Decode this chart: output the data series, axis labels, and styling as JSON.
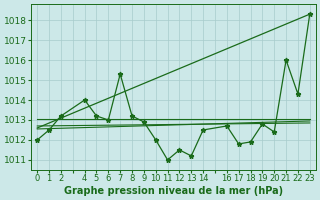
{
  "series_main": {
    "x": [
      0,
      1,
      2,
      4,
      5,
      6,
      7,
      8,
      9,
      10,
      11,
      12,
      13,
      14,
      16,
      17,
      18,
      19,
      20,
      21,
      22,
      23
    ],
    "y": [
      1012.0,
      1012.5,
      1013.2,
      1014.0,
      1013.2,
      1013.0,
      1015.3,
      1013.2,
      1012.9,
      1012.0,
      1011.0,
      1011.5,
      1011.2,
      1012.5,
      1012.7,
      1011.8,
      1011.9,
      1012.8,
      1012.4,
      1016.0,
      1014.3,
      1018.3
    ]
  },
  "series_diag": {
    "x": [
      0,
      23
    ],
    "y": [
      1012.6,
      1018.3
    ]
  },
  "series_flat1": {
    "x": [
      0,
      23
    ],
    "y": [
      1013.05,
      1013.05
    ]
  },
  "series_flat2": {
    "x": [
      0,
      23
    ],
    "y": [
      1012.7,
      1012.85
    ]
  },
  "series_flat3": {
    "x": [
      0,
      23
    ],
    "y": [
      1012.55,
      1012.95
    ]
  },
  "line_color": "#1a6b1a",
  "bg_color": "#cce8e8",
  "grid_color": "#a8cccc",
  "xlabel": "Graphe pression niveau de la mer (hPa)",
  "ylim": [
    1010.5,
    1018.8
  ],
  "xlim": [
    -0.5,
    23.5
  ],
  "yticks": [
    1011,
    1012,
    1013,
    1014,
    1015,
    1016,
    1017,
    1018
  ],
  "xtick_labels": [
    "0",
    "1",
    "2",
    "",
    "4",
    "5",
    "6",
    "7",
    "8",
    "9",
    "10",
    "11",
    "12",
    "13",
    "14",
    "",
    "16",
    "17",
    "18",
    "19",
    "20",
    "21",
    "22",
    "23"
  ],
  "xlabel_fontsize": 7,
  "ytick_fontsize": 6.5,
  "xtick_fontsize": 6.0
}
